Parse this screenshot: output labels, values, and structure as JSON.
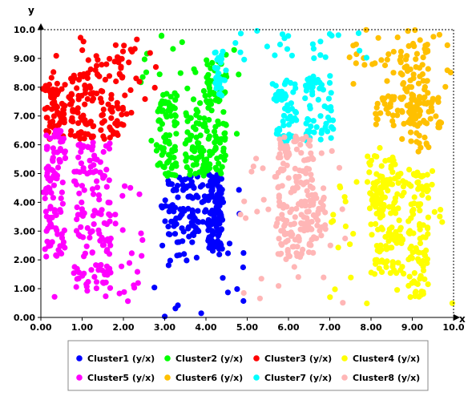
{
  "chart_data": {
    "type": "scatter",
    "title": "",
    "xlabel": "x",
    "ylabel": "y",
    "xlim": [
      0,
      10
    ],
    "ylim": [
      0,
      10
    ],
    "xticks": [
      "0.00",
      "1.00",
      "2.00",
      "3.00",
      "4.00",
      "5.00",
      "6.00",
      "7.00",
      "8.00",
      "9.00",
      "10.0"
    ],
    "yticks": [
      "0.00",
      "1.00",
      "2.00",
      "3.00",
      "4.00",
      "5.00",
      "6.00",
      "7.00",
      "8.00",
      "9.00",
      "10.0"
    ],
    "grid": false,
    "legend_position": "bottom",
    "series": [
      {
        "name": "Cluster1 (y/x)",
        "color": "#0000ff",
        "regions": [
          [
            3.0,
            4.0,
            2.6,
            4.9,
            90
          ],
          [
            4.05,
            4.4,
            2.3,
            5.0,
            110
          ],
          [
            2.6,
            5.0,
            0.0,
            4.6,
            35
          ]
        ]
      },
      {
        "name": "Cluster2 (y/x)",
        "color": "#00ff00",
        "regions": [
          [
            2.8,
            3.3,
            4.9,
            7.8,
            80
          ],
          [
            3.5,
            4.0,
            4.9,
            7.3,
            60
          ],
          [
            4.0,
            4.5,
            5.0,
            9.3,
            90
          ],
          [
            2.4,
            4.9,
            6.0,
            9.9,
            30
          ]
        ]
      },
      {
        "name": "Cluster3 (y/x)",
        "color": "#ff0000",
        "regions": [
          [
            0.1,
            0.6,
            6.2,
            8.2,
            60
          ],
          [
            0.7,
            1.1,
            6.2,
            8.5,
            50
          ],
          [
            1.1,
            2.0,
            6.2,
            9.1,
            80
          ],
          [
            0.0,
            2.8,
            7.0,
            10.0,
            35
          ]
        ]
      },
      {
        "name": "Cluster4 (y/x)",
        "color": "#ffff00",
        "regions": [
          [
            8.0,
            8.8,
            1.5,
            5.0,
            100
          ],
          [
            8.9,
            9.4,
            0.7,
            5.2,
            90
          ],
          [
            7.9,
            8.6,
            3.5,
            5.9,
            50
          ],
          [
            7.0,
            10.0,
            0.0,
            5.3,
            40
          ]
        ]
      },
      {
        "name": "Cluster5 (y/x)",
        "color": "#ff00ff",
        "regions": [
          [
            0.1,
            0.6,
            2.1,
            6.5,
            100
          ],
          [
            0.8,
            1.7,
            1.0,
            6.1,
            120
          ],
          [
            0.0,
            2.5,
            0.3,
            5.0,
            40
          ]
        ]
      },
      {
        "name": "Cluster6 (y/x)",
        "color": "#ffc000",
        "regions": [
          [
            8.7,
            9.4,
            5.7,
            9.6,
            80
          ],
          [
            8.1,
            9.7,
            6.6,
            7.7,
            80
          ],
          [
            7.4,
            10.0,
            8.0,
            10.0,
            35
          ]
        ]
      },
      {
        "name": "Cluster7 (y/x)",
        "color": "#00ffff",
        "regions": [
          [
            5.6,
            6.2,
            6.1,
            8.3,
            60
          ],
          [
            6.4,
            7.1,
            6.1,
            8.4,
            60
          ],
          [
            4.2,
            4.5,
            7.7,
            9.3,
            30
          ],
          [
            4.6,
            7.9,
            8.8,
            10.0,
            25
          ]
        ]
      },
      {
        "name": "Cluster8 (y/x)",
        "color": "#ffb6b6",
        "regions": [
          [
            5.7,
            6.6,
            2.0,
            6.3,
            150
          ],
          [
            6.3,
            6.9,
            2.7,
            4.5,
            40
          ],
          [
            4.8,
            7.5,
            0.3,
            6.0,
            35
          ]
        ]
      }
    ]
  }
}
